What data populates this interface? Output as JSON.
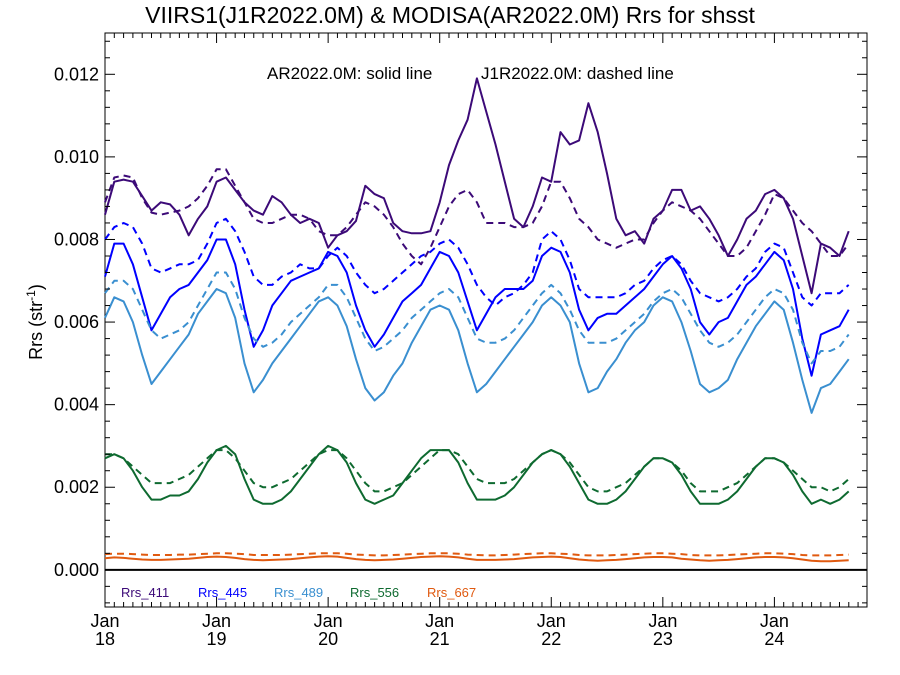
{
  "chart_data": {
    "type": "line",
    "title": "VIIRS1(J1R2022.0M) & MODISA(AR2022.0M)  Rrs for shsst",
    "annotation": {
      "solid": "AR2022.0M: solid line",
      "dashed": "J1R2022.0M: dashed line"
    },
    "ylabel": "Rrs (str",
    "ylabel_sup": "-1",
    "ylabel_close": ")",
    "ylim": [
      -0.0009,
      0.013
    ],
    "xlim": [
      2018.0,
      2024.83
    ],
    "yticks": [
      {
        "v": 0.0,
        "label": "0.000"
      },
      {
        "v": 0.002,
        "label": "0.002"
      },
      {
        "v": 0.004,
        "label": "0.004"
      },
      {
        "v": 0.006,
        "label": "0.006"
      },
      {
        "v": 0.008,
        "label": "0.008"
      },
      {
        "v": 0.01,
        "label": "0.010"
      },
      {
        "v": 0.012,
        "label": "0.012"
      }
    ],
    "xticks": [
      {
        "x": 2018.0,
        "month": "Jan",
        "year": "18"
      },
      {
        "x": 2019.0,
        "month": "Jan",
        "year": "19"
      },
      {
        "x": 2020.0,
        "month": "Jan",
        "year": "20"
      },
      {
        "x": 2021.0,
        "month": "Jan",
        "year": "21"
      },
      {
        "x": 2022.0,
        "month": "Jan",
        "year": "22"
      },
      {
        "x": 2023.0,
        "month": "Jan",
        "year": "23"
      },
      {
        "x": 2024.0,
        "month": "Jan",
        "year": "24"
      }
    ],
    "x_start": 2018.0,
    "x_step": 0.08333,
    "grid": false,
    "legend_placement": "bottom-left",
    "series": [
      {
        "name": "Rrs_411",
        "color": "#3c0a78",
        "solid": [
          0.0086,
          0.0094,
          0.00945,
          0.0094,
          0.00905,
          0.0087,
          0.0089,
          0.00885,
          0.0086,
          0.0081,
          0.0085,
          0.0088,
          0.0094,
          0.0095,
          0.0092,
          0.0089,
          0.0087,
          0.0086,
          0.00905,
          0.0089,
          0.0086,
          0.0084,
          0.0085,
          0.0084,
          0.0078,
          0.0081,
          0.0082,
          0.00845,
          0.0093,
          0.0091,
          0.009,
          0.0084,
          0.0082,
          0.00815,
          0.00815,
          0.0082,
          0.0089,
          0.0098,
          0.0104,
          0.0109,
          0.0119,
          0.0111,
          0.0103,
          0.0094,
          0.0085,
          0.0083,
          0.0088,
          0.0095,
          0.0094,
          0.0106,
          0.0103,
          0.0104,
          0.0113,
          0.0106,
          0.0096,
          0.0085,
          0.0081,
          0.0082,
          0.0079,
          0.0085,
          0.0087,
          0.0092,
          0.0092,
          0.0087,
          0.0088,
          0.0085,
          0.0081,
          0.0076,
          0.008,
          0.0085,
          0.0087,
          0.0091,
          0.0092,
          0.009,
          0.0085,
          0.0076,
          0.0067,
          0.0079,
          0.0078,
          0.0076,
          0.0082
        ],
        "dashed": [
          0.0089,
          0.0095,
          0.00955,
          0.0095,
          0.009,
          0.00865,
          0.0086,
          0.00865,
          0.0087,
          0.0088,
          0.009,
          0.0093,
          0.0097,
          0.0097,
          0.0093,
          0.0089,
          0.0085,
          0.0084,
          0.0084,
          0.0085,
          0.0086,
          0.0086,
          0.0085,
          0.0082,
          0.0081,
          0.0081,
          0.0083,
          0.0086,
          0.0089,
          0.0088,
          0.0086,
          0.0083,
          0.0079,
          0.0076,
          0.0074,
          0.0078,
          0.0083,
          0.0088,
          0.0091,
          0.0092,
          0.0089,
          0.0084,
          0.0084,
          0.0084,
          0.0083,
          0.0083,
          0.0084,
          0.0088,
          0.0094,
          0.0094,
          0.009,
          0.0085,
          0.0083,
          0.008,
          0.0079,
          0.0078,
          0.0079,
          0.008,
          0.008,
          0.0084,
          0.0087,
          0.0089,
          0.0088,
          0.0087,
          0.0085,
          0.0082,
          0.0079,
          0.0076,
          0.0076,
          0.0078,
          0.0082,
          0.0086,
          0.0091,
          0.009,
          0.0087,
          0.0084,
          0.0082,
          0.0079,
          0.0076,
          0.0076,
          0.0079
        ]
      },
      {
        "name": "Rrs_445",
        "color": "#0000ff",
        "solid": [
          0.0071,
          0.0079,
          0.0079,
          0.0074,
          0.0066,
          0.0058,
          0.0062,
          0.0066,
          0.0068,
          0.0069,
          0.0072,
          0.0075,
          0.008,
          0.008,
          0.0074,
          0.0063,
          0.0054,
          0.0058,
          0.0064,
          0.0067,
          0.007,
          0.0071,
          0.0072,
          0.0073,
          0.0077,
          0.0076,
          0.0072,
          0.0064,
          0.0058,
          0.0054,
          0.0057,
          0.0061,
          0.0065,
          0.0067,
          0.0069,
          0.0073,
          0.0077,
          0.0076,
          0.0072,
          0.0065,
          0.0058,
          0.0062,
          0.0066,
          0.0068,
          0.0068,
          0.0068,
          0.007,
          0.0076,
          0.0078,
          0.0077,
          0.0072,
          0.0063,
          0.0058,
          0.0061,
          0.0062,
          0.0062,
          0.0064,
          0.0066,
          0.0068,
          0.0071,
          0.0074,
          0.0076,
          0.0073,
          0.0068,
          0.006,
          0.0057,
          0.006,
          0.0061,
          0.0065,
          0.0069,
          0.0071,
          0.0074,
          0.0077,
          0.0075,
          0.0068,
          0.0056,
          0.0047,
          0.0057,
          0.0058,
          0.0059,
          0.0063
        ],
        "dashed": [
          0.008,
          0.0083,
          0.0084,
          0.0083,
          0.0079,
          0.0073,
          0.0072,
          0.0073,
          0.0074,
          0.0074,
          0.0075,
          0.0079,
          0.0084,
          0.0085,
          0.0082,
          0.0077,
          0.0071,
          0.0069,
          0.0069,
          0.0071,
          0.0072,
          0.0074,
          0.0073,
          0.0073,
          0.0076,
          0.0078,
          0.0076,
          0.0072,
          0.0069,
          0.0067,
          0.0068,
          0.007,
          0.0072,
          0.0074,
          0.0076,
          0.0077,
          0.0079,
          0.008,
          0.0078,
          0.0074,
          0.0069,
          0.0066,
          0.0064,
          0.0066,
          0.0067,
          0.0069,
          0.0072,
          0.008,
          0.0082,
          0.008,
          0.0075,
          0.0068,
          0.0066,
          0.0066,
          0.0066,
          0.0066,
          0.0067,
          0.0069,
          0.007,
          0.0073,
          0.0075,
          0.0076,
          0.0074,
          0.007,
          0.0067,
          0.0066,
          0.0065,
          0.0066,
          0.0068,
          0.0071,
          0.0073,
          0.0077,
          0.0079,
          0.0078,
          0.0072,
          0.0066,
          0.0064,
          0.0067,
          0.0067,
          0.0067,
          0.0069
        ]
      },
      {
        "name": "Rrs_489",
        "color": "#3a8fd0",
        "solid": [
          0.0061,
          0.0066,
          0.0065,
          0.006,
          0.0052,
          0.0045,
          0.0048,
          0.0051,
          0.0054,
          0.0057,
          0.0062,
          0.0065,
          0.0068,
          0.0067,
          0.0061,
          0.005,
          0.0043,
          0.0046,
          0.005,
          0.0053,
          0.0056,
          0.0059,
          0.0062,
          0.0065,
          0.0066,
          0.0064,
          0.0059,
          0.0051,
          0.0044,
          0.0041,
          0.0043,
          0.0047,
          0.005,
          0.0055,
          0.0059,
          0.0063,
          0.0064,
          0.0063,
          0.0058,
          0.005,
          0.0043,
          0.0045,
          0.0048,
          0.0051,
          0.0054,
          0.0057,
          0.006,
          0.0064,
          0.0066,
          0.0064,
          0.006,
          0.005,
          0.0043,
          0.0044,
          0.0048,
          0.0051,
          0.0055,
          0.0058,
          0.006,
          0.0064,
          0.0066,
          0.0065,
          0.006,
          0.0053,
          0.0045,
          0.0043,
          0.0044,
          0.0046,
          0.0051,
          0.0055,
          0.0059,
          0.0062,
          0.0065,
          0.0063,
          0.0055,
          0.0046,
          0.0038,
          0.0044,
          0.0045,
          0.0048,
          0.0051
        ],
        "dashed": [
          0.0067,
          0.007,
          0.007,
          0.0068,
          0.0063,
          0.0058,
          0.0056,
          0.0057,
          0.0058,
          0.006,
          0.0064,
          0.0068,
          0.0072,
          0.0072,
          0.0068,
          0.0061,
          0.0056,
          0.0054,
          0.0055,
          0.0057,
          0.006,
          0.0062,
          0.0064,
          0.0066,
          0.0069,
          0.0069,
          0.0066,
          0.0061,
          0.0056,
          0.0053,
          0.0054,
          0.0056,
          0.0058,
          0.0061,
          0.0063,
          0.0065,
          0.0067,
          0.0068,
          0.0066,
          0.0061,
          0.0056,
          0.0055,
          0.0055,
          0.0056,
          0.0058,
          0.0061,
          0.0064,
          0.0067,
          0.0069,
          0.0067,
          0.0063,
          0.0058,
          0.0055,
          0.0055,
          0.0055,
          0.0056,
          0.0058,
          0.006,
          0.0062,
          0.0065,
          0.0067,
          0.0068,
          0.0066,
          0.0062,
          0.0058,
          0.0055,
          0.0054,
          0.0055,
          0.0057,
          0.006,
          0.0063,
          0.0066,
          0.0068,
          0.0067,
          0.0063,
          0.0055,
          0.005,
          0.0053,
          0.0053,
          0.0054,
          0.0057
        ]
      },
      {
        "name": "Rrs_556",
        "color": "#0e6a30",
        "solid": [
          0.0027,
          0.0028,
          0.0027,
          0.0024,
          0.002,
          0.0017,
          0.0017,
          0.0018,
          0.0018,
          0.0019,
          0.0022,
          0.0026,
          0.0029,
          0.003,
          0.0028,
          0.0022,
          0.0017,
          0.0016,
          0.0016,
          0.0017,
          0.0019,
          0.0022,
          0.0025,
          0.0028,
          0.003,
          0.0029,
          0.0026,
          0.0021,
          0.0017,
          0.0016,
          0.0017,
          0.0018,
          0.0021,
          0.0024,
          0.0027,
          0.0029,
          0.0029,
          0.0029,
          0.0026,
          0.0021,
          0.0017,
          0.0017,
          0.0017,
          0.0018,
          0.002,
          0.0023,
          0.0026,
          0.0028,
          0.0029,
          0.0028,
          0.0025,
          0.0021,
          0.0017,
          0.0016,
          0.0016,
          0.0017,
          0.0019,
          0.0022,
          0.0025,
          0.0027,
          0.0027,
          0.0026,
          0.0023,
          0.0019,
          0.0016,
          0.0016,
          0.0016,
          0.0017,
          0.0019,
          0.0022,
          0.0025,
          0.0027,
          0.0027,
          0.0026,
          0.0023,
          0.0019,
          0.0016,
          0.0017,
          0.0016,
          0.0017,
          0.0019
        ],
        "dashed": [
          0.0028,
          0.0028,
          0.0027,
          0.0025,
          0.0023,
          0.0021,
          0.0021,
          0.0021,
          0.0022,
          0.0023,
          0.0025,
          0.0027,
          0.0029,
          0.0029,
          0.0027,
          0.0024,
          0.0021,
          0.002,
          0.002,
          0.0021,
          0.0022,
          0.0024,
          0.0026,
          0.0028,
          0.0029,
          0.0029,
          0.0027,
          0.0024,
          0.0021,
          0.0019,
          0.0019,
          0.002,
          0.0021,
          0.0023,
          0.0025,
          0.0027,
          0.0029,
          0.0029,
          0.0028,
          0.0025,
          0.0022,
          0.0021,
          0.0021,
          0.0021,
          0.0022,
          0.0024,
          0.0026,
          0.0028,
          0.0029,
          0.0028,
          0.0026,
          0.0023,
          0.002,
          0.0019,
          0.0019,
          0.002,
          0.0021,
          0.0023,
          0.0025,
          0.0027,
          0.0027,
          0.0026,
          0.0024,
          0.0021,
          0.0019,
          0.0019,
          0.0019,
          0.002,
          0.0021,
          0.0023,
          0.0025,
          0.0027,
          0.0027,
          0.0026,
          0.0024,
          0.0022,
          0.002,
          0.002,
          0.0019,
          0.002,
          0.0022
        ]
      },
      {
        "name": "Rrs_667",
        "color": "#e05a10",
        "solid": [
          0.00028,
          0.0003,
          0.00029,
          0.00027,
          0.00025,
          0.00024,
          0.00024,
          0.00025,
          0.00026,
          0.00027,
          0.00029,
          0.00031,
          0.00032,
          0.00031,
          0.00029,
          0.00026,
          0.00024,
          0.00023,
          0.00024,
          0.00025,
          0.00026,
          0.00028,
          0.0003,
          0.00032,
          0.00033,
          0.00032,
          0.00029,
          0.00026,
          0.00024,
          0.00023,
          0.00024,
          0.00025,
          0.00027,
          0.00029,
          0.00031,
          0.00032,
          0.00033,
          0.00032,
          0.0003,
          0.00027,
          0.00024,
          0.00024,
          0.00024,
          0.00025,
          0.00026,
          0.00028,
          0.0003,
          0.00031,
          0.00032,
          0.00031,
          0.00028,
          0.00025,
          0.00023,
          0.00022,
          0.00023,
          0.00024,
          0.00026,
          0.00028,
          0.0003,
          0.00031,
          0.00031,
          0.0003,
          0.00027,
          0.00025,
          0.00023,
          0.00022,
          0.00023,
          0.00024,
          0.00026,
          0.00028,
          0.0003,
          0.00031,
          0.00031,
          0.0003,
          0.00028,
          0.00025,
          0.00022,
          0.00021,
          0.00021,
          0.00022,
          0.00023
        ],
        "dashed": [
          0.00038,
          0.00039,
          0.00039,
          0.00038,
          0.00037,
          0.00036,
          0.00036,
          0.00036,
          0.00037,
          0.00037,
          0.00038,
          0.00039,
          0.0004,
          0.0004,
          0.00039,
          0.00038,
          0.00036,
          0.00036,
          0.00036,
          0.00036,
          0.00037,
          0.00038,
          0.00039,
          0.0004,
          0.0004,
          0.0004,
          0.00039,
          0.00037,
          0.00036,
          0.00035,
          0.00035,
          0.00036,
          0.00037,
          0.00038,
          0.00039,
          0.0004,
          0.0004,
          0.0004,
          0.00039,
          0.00037,
          0.00036,
          0.00035,
          0.00035,
          0.00036,
          0.00037,
          0.00038,
          0.00039,
          0.0004,
          0.0004,
          0.00039,
          0.00038,
          0.00036,
          0.00035,
          0.00035,
          0.00035,
          0.00036,
          0.00037,
          0.00038,
          0.00039,
          0.0004,
          0.0004,
          0.00039,
          0.00038,
          0.00036,
          0.00035,
          0.00035,
          0.00035,
          0.00036,
          0.00037,
          0.00038,
          0.00039,
          0.0004,
          0.0004,
          0.00039,
          0.00038,
          0.00036,
          0.00035,
          0.00035,
          0.00035,
          0.00036,
          0.00037
        ]
      }
    ]
  }
}
